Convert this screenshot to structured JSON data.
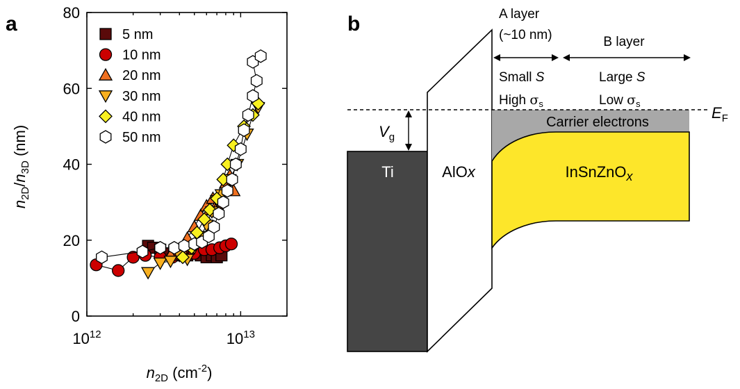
{
  "panel_a": {
    "label": "a"
  },
  "panel_b": {
    "label": "b"
  },
  "chart_data": {
    "type": "scatter",
    "xscale": "log",
    "xlim": [
      1000000000000.0,
      20000000000000.0
    ],
    "ylim": [
      0,
      80
    ],
    "grid": false,
    "legend_position": "top-left",
    "title": "",
    "xlabel": {
      "main": "n",
      "sub": "2D",
      "unit": " (cm",
      "sup": "-2",
      "close": ")"
    },
    "ylabel": {
      "n1": "n",
      "s1": "2D",
      "slash": "/",
      "n2": "n",
      "s2": "3D",
      "unit": " (nm)"
    },
    "x_ticks": [
      {
        "value": 1000000000000.0,
        "base": "10",
        "exp": "12"
      },
      {
        "value": 10000000000000.0,
        "base": "10",
        "exp": "13"
      }
    ],
    "y_ticks": [
      0,
      20,
      40,
      60,
      80
    ],
    "series": [
      {
        "name": "5 nm",
        "marker": "square",
        "color": "#5a0a0a",
        "points": [
          [
            2500000000000.0,
            18.5
          ],
          [
            2700000000000.0,
            18
          ],
          [
            3000000000000.0,
            17.5
          ],
          [
            3300000000000.0,
            16.5
          ],
          [
            3700000000000.0,
            17
          ],
          [
            4000000000000.0,
            16
          ],
          [
            4500000000000.0,
            16
          ],
          [
            5000000000000.0,
            16.5
          ],
          [
            5500000000000.0,
            16
          ],
          [
            6000000000000.0,
            15.5
          ],
          [
            6500000000000.0,
            16
          ],
          [
            7000000000000.0,
            15.5
          ],
          [
            7500000000000.0,
            16
          ]
        ]
      },
      {
        "name": "10 nm",
        "marker": "circle",
        "color": "#cc0000",
        "points": [
          [
            1150000000000.0,
            13.5
          ],
          [
            1600000000000.0,
            12
          ],
          [
            2000000000000.0,
            15.5
          ],
          [
            2400000000000.0,
            16
          ],
          [
            3000000000000.0,
            15.5
          ],
          [
            3600000000000.0,
            15.5
          ],
          [
            4300000000000.0,
            16
          ],
          [
            5000000000000.0,
            16.5
          ],
          [
            5800000000000.0,
            17.5
          ],
          [
            6500000000000.0,
            17.5
          ],
          [
            7300000000000.0,
            18
          ],
          [
            8000000000000.0,
            18.5
          ],
          [
            8700000000000.0,
            19
          ]
        ]
      },
      {
        "name": "20 nm",
        "marker": "triangle-up",
        "color": "#f07020",
        "points": [
          [
            3500000000000.0,
            16
          ],
          [
            4200000000000.0,
            17
          ],
          [
            4500000000000.0,
            20.5
          ],
          [
            5000000000000.0,
            23.5
          ],
          [
            5500000000000.0,
            26.5
          ],
          [
            6000000000000.0,
            29
          ],
          [
            6300000000000.0,
            28
          ],
          [
            6600000000000.0,
            31
          ],
          [
            7000000000000.0,
            29.5
          ],
          [
            8000000000000.0,
            35
          ],
          [
            8500000000000.0,
            37
          ],
          [
            9000000000000.0,
            33
          ]
        ]
      },
      {
        "name": "30 nm",
        "marker": "triangle-down",
        "color": "#f8b020",
        "points": [
          [
            2500000000000.0,
            11.5
          ],
          [
            3000000000000.0,
            14
          ],
          [
            3500000000000.0,
            14.5
          ],
          [
            4000000000000.0,
            16
          ],
          [
            4500000000000.0,
            15
          ],
          [
            5000000000000.0,
            18
          ],
          [
            5500000000000.0,
            21
          ],
          [
            6000000000000.0,
            24
          ],
          [
            6500000000000.0,
            27.5
          ],
          [
            7000000000000.0,
            30.5
          ],
          [
            7500000000000.0,
            32
          ],
          [
            8500000000000.0,
            36
          ],
          [
            9500000000000.0,
            40
          ],
          [
            11000000000000.0,
            48
          ],
          [
            12000000000000.0,
            53
          ],
          [
            13000000000000.0,
            55
          ]
        ]
      },
      {
        "name": "40 nm",
        "marker": "diamond",
        "color": "#f8f020",
        "points": [
          [
            4200000000000.0,
            15.5
          ],
          [
            4800000000000.0,
            18
          ],
          [
            5200000000000.0,
            22
          ],
          [
            5800000000000.0,
            25.5
          ],
          [
            6300000000000.0,
            28
          ],
          [
            7000000000000.0,
            31
          ],
          [
            7700000000000.0,
            36
          ],
          [
            8200000000000.0,
            40
          ],
          [
            9000000000000.0,
            45
          ],
          [
            10500000000000.0,
            50
          ],
          [
            12000000000000.0,
            53
          ],
          [
            13000000000000.0,
            56
          ]
        ]
      },
      {
        "name": "50 nm",
        "marker": "hexagon",
        "color": "#ffffff",
        "points": [
          [
            1250000000000.0,
            15.5
          ],
          [
            2300000000000.0,
            17
          ],
          [
            3000000000000.0,
            18
          ],
          [
            3700000000000.0,
            18
          ],
          [
            4300000000000.0,
            18.5
          ],
          [
            5000000000000.0,
            19
          ],
          [
            5600000000000.0,
            19.5
          ],
          [
            6200000000000.0,
            21
          ],
          [
            6700000000000.0,
            23.5
          ],
          [
            7200000000000.0,
            27
          ],
          [
            7700000000000.0,
            30
          ],
          [
            8200000000000.0,
            33
          ],
          [
            8800000000000.0,
            36
          ],
          [
            9300000000000.0,
            40
          ],
          [
            10000000000000.0,
            44
          ],
          [
            10500000000000.0,
            49
          ],
          [
            11200000000000.0,
            53
          ],
          [
            12000000000000.0,
            58
          ],
          [
            12700000000000.0,
            62
          ],
          [
            12000000000000.0,
            67
          ],
          [
            13500000000000.0,
            68.5
          ]
        ]
      }
    ]
  },
  "diagram": {
    "a_layer": "A layer",
    "a_layer_thickness": "(~10 nm)",
    "b_layer": "B layer",
    "small_s": {
      "text": "Small ",
      "var": "S"
    },
    "large_s": {
      "text": "Large ",
      "var": "S"
    },
    "high_sigma": {
      "text": "High ",
      "sym": "σ",
      "sub": "s"
    },
    "low_sigma": {
      "text": "Low ",
      "sym": "σ",
      "sub": "s"
    },
    "ef": {
      "var": "E",
      "sub": "F"
    },
    "vg": {
      "var": "V",
      "sub": "g"
    },
    "carrier_electrons": "Carrier electrons",
    "ti": "Ti",
    "aloxide": {
      "text": "AlO",
      "var": "x"
    },
    "igzo": {
      "text": "InSnZnO",
      "var": "x"
    },
    "colors": {
      "metal": "#454545",
      "semiconductor": "#fde62a",
      "carrier": "#a8a8a8",
      "outline": "#000000"
    }
  }
}
